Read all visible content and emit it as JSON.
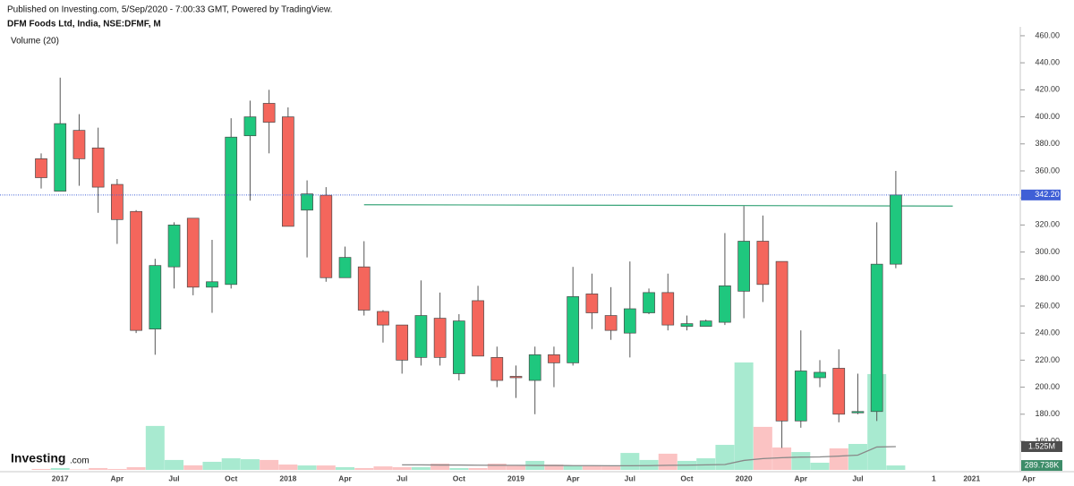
{
  "chart_data": {
    "type": "candlestick",
    "subtitle": "Published on Investing.com, 5/Sep/2020 - 7:00:33 GMT, Powered by TradingView.",
    "title": "DFM Foods Ltd, India, NSE:DFMF, M",
    "logo": "Investing",
    "logo_suffix": ".com",
    "categories": [
      null,
      "2017",
      null,
      null,
      "Apr",
      null,
      null,
      "Jul",
      null,
      null,
      "Oct",
      null,
      null,
      "2018",
      null,
      null,
      "Apr",
      null,
      null,
      "Jul",
      null,
      null,
      "Oct",
      null,
      null,
      "2019",
      null,
      null,
      "Apr",
      null,
      null,
      "Jul",
      null,
      null,
      "Oct",
      null,
      null,
      "2020",
      null,
      null,
      "Apr",
      null,
      null,
      "Jul",
      null,
      null,
      null,
      "1",
      null,
      "2021",
      null,
      null,
      "Apr"
    ],
    "open": [
      369,
      345,
      390,
      377,
      350,
      330,
      243,
      289,
      325,
      274,
      276,
      386,
      410,
      400,
      331,
      342,
      281,
      289,
      256,
      246,
      222,
      251,
      210,
      264,
      222,
      208,
      205,
      224,
      218,
      269,
      253,
      240,
      255,
      270,
      245,
      245,
      248,
      271,
      308,
      293,
      175,
      207,
      214,
      181,
      182,
      291,
      null,
      null,
      null,
      null,
      null,
      null,
      null
    ],
    "high": [
      373,
      429,
      402,
      392,
      354,
      331,
      295,
      322,
      325,
      309,
      399,
      412,
      420,
      407,
      353,
      348,
      304,
      308,
      257,
      246,
      279,
      270,
      254,
      275,
      230,
      216,
      230,
      230,
      289,
      284,
      274,
      293,
      273,
      284,
      253,
      250,
      314,
      334,
      327,
      293,
      242,
      220,
      228,
      210,
      322,
      360,
      null,
      null,
      null,
      null,
      null,
      null,
      null
    ],
    "low": [
      347,
      345,
      349,
      329,
      306,
      240,
      224,
      273,
      268,
      255,
      273,
      338,
      373,
      319,
      296,
      278,
      281,
      253,
      233,
      210,
      216,
      216,
      205,
      223,
      200,
      192,
      180,
      200,
      216,
      243,
      235,
      222,
      254,
      242,
      242,
      245,
      246,
      251,
      263,
      155,
      170,
      200,
      174,
      180,
      175,
      288,
      null,
      null,
      null,
      null,
      null,
      null,
      null
    ],
    "close": [
      355,
      395,
      369,
      348,
      324,
      242,
      290,
      320,
      274,
      278,
      385,
      400,
      396,
      319,
      343,
      281,
      296,
      257,
      246,
      220,
      253,
      222,
      249,
      223,
      205,
      207,
      224,
      218,
      267,
      255,
      242,
      258,
      270,
      246,
      247,
      249,
      275,
      308,
      276,
      175,
      212,
      211,
      180,
      182,
      291,
      342.2,
      null,
      null,
      null,
      null,
      null,
      null,
      null
    ],
    "last_label": "342.20",
    "up_color": "#1fc77e",
    "down_color": "#f4665c",
    "price_line_color": "#3f5fd6",
    "ylim": [
      138.8,
      464.6
    ],
    "yticks": [
      {
        "value": 160,
        "label": "160.00"
      },
      {
        "value": 180,
        "label": "180.00"
      },
      {
        "value": 200,
        "label": "200.00"
      },
      {
        "value": 220,
        "label": "220.00"
      },
      {
        "value": 240,
        "label": "240.00"
      },
      {
        "value": 260,
        "label": "260.00"
      },
      {
        "value": 280,
        "label": "280.00"
      },
      {
        "value": 300,
        "label": "300.00"
      },
      {
        "value": 320,
        "label": "320.00"
      },
      {
        "value": 340,
        "label": "340.00"
      },
      {
        "value": 360,
        "label": "360.00"
      },
      {
        "value": 380,
        "label": "380.00"
      },
      {
        "value": 400,
        "label": "400.00"
      },
      {
        "value": 420,
        "label": "420.00"
      },
      {
        "value": 440,
        "label": "440.00"
      },
      {
        "value": 460,
        "label": "460.00"
      }
    ],
    "trendline": {
      "x": [
        17,
        48
      ],
      "values": [
        335,
        334
      ],
      "color": "#3aa57a"
    },
    "volume": {
      "name": "Volume (20)",
      "values": [
        60000,
        120000,
        30000,
        120000,
        60000,
        180000,
        2880000,
        650000,
        300000,
        530000,
        760000,
        700000,
        650000,
        350000,
        290000,
        290000,
        180000,
        120000,
        230000,
        180000,
        180000,
        410000,
        120000,
        120000,
        410000,
        290000,
        590000,
        350000,
        290000,
        290000,
        230000,
        1110000,
        650000,
        1060000,
        590000,
        760000,
        1640000,
        7040000,
        2820000,
        1470000,
        1170000,
        470000,
        1410000,
        1700000,
        6280000,
        289738,
        null,
        null,
        null,
        null,
        null,
        null,
        null
      ],
      "last_label": "289.738K",
      "ma_values": [
        null,
        null,
        null,
        null,
        null,
        null,
        null,
        null,
        null,
        null,
        null,
        null,
        null,
        null,
        null,
        null,
        null,
        null,
        null,
        330000,
        330000,
        320000,
        320000,
        310000,
        300000,
        300000,
        290000,
        290000,
        280000,
        280000,
        270000,
        270000,
        280000,
        300000,
        310000,
        330000,
        350000,
        620000,
        740000,
        800000,
        840000,
        850000,
        900000,
        970000,
        1500000,
        1525000,
        null,
        null,
        null,
        null,
        null,
        null,
        null
      ],
      "ma_label": "1.525M",
      "ma_color": "#888888",
      "up_color": "#a8ead0",
      "down_color": "#fbc3c3",
      "ylim": [
        0,
        8000000
      ]
    }
  }
}
